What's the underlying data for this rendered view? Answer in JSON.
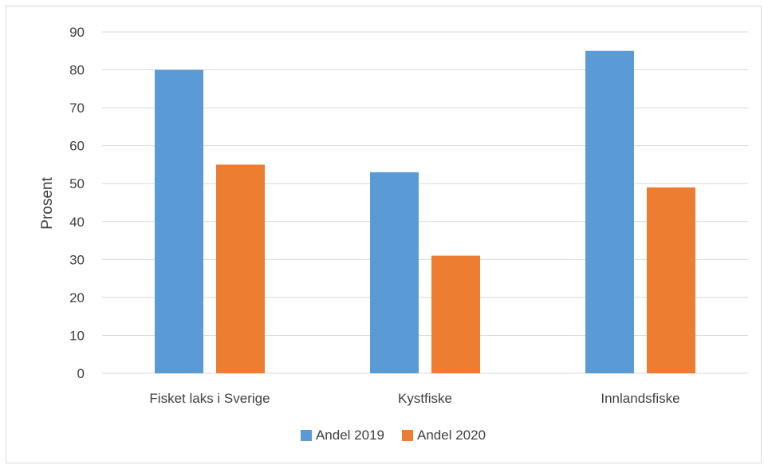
{
  "chart_data": {
    "type": "bar",
    "title": "",
    "xlabel": "",
    "ylabel": "Prosent",
    "categories": [
      "Fisket laks i Sverige",
      "Kystfiske",
      "Innlandsfiske"
    ],
    "series": [
      {
        "name": "Andel 2019",
        "values": [
          80,
          53,
          85
        ],
        "color": "#5b9bd5"
      },
      {
        "name": "Andel 2020",
        "values": [
          55,
          31,
          49
        ],
        "color": "#ed7d31"
      }
    ],
    "ylim": [
      0,
      90
    ],
    "yticks": [
      0,
      10,
      20,
      30,
      40,
      50,
      60,
      70,
      80,
      90
    ],
    "grid": true,
    "legend_position": "bottom",
    "gridline_color": "#d9d9d9"
  }
}
